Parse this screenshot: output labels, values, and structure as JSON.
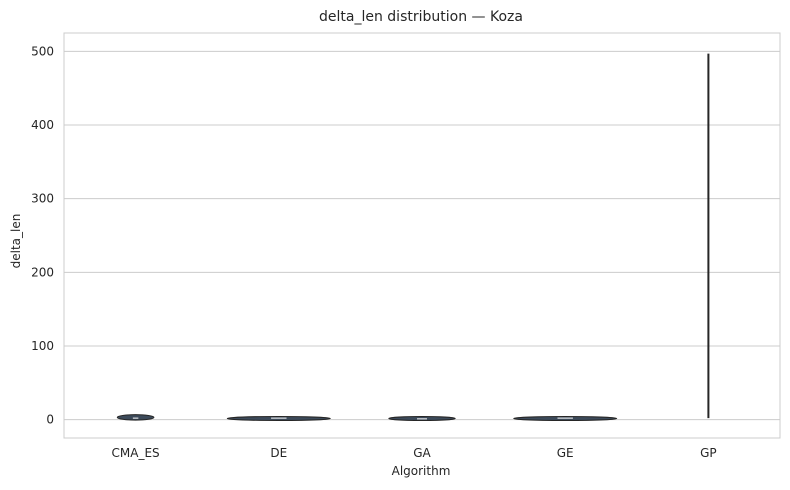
{
  "chart_data": {
    "type": "violin",
    "title": "delta_len distribution — Koza",
    "xlabel": "Algorithm",
    "ylabel": "delta_len",
    "categories": [
      "CMA_ES",
      "DE",
      "GA",
      "GE",
      "GP"
    ],
    "ylim": [
      -25,
      525
    ],
    "yticks": [
      0,
      100,
      200,
      300,
      400,
      500
    ],
    "grid": "y",
    "distributions": [
      {
        "category": "CMA_ES",
        "min": 0,
        "max": 6,
        "median": 2,
        "relative_width": 0.32
      },
      {
        "category": "DE",
        "min": 0,
        "max": 3,
        "median": 2,
        "relative_width": 0.9
      },
      {
        "category": "GA",
        "min": 0,
        "max": 3,
        "median": 1,
        "relative_width": 0.58
      },
      {
        "category": "GE",
        "min": 0,
        "max": 3,
        "median": 2,
        "relative_width": 0.9
      },
      {
        "category": "GP",
        "min": 2,
        "max": 497,
        "median": 3,
        "relative_width": 0.04
      }
    ],
    "colors": {
      "body": "#3c4a5a",
      "line": "#262626",
      "grid": "#cccccc",
      "frame": "#cccccc"
    }
  }
}
